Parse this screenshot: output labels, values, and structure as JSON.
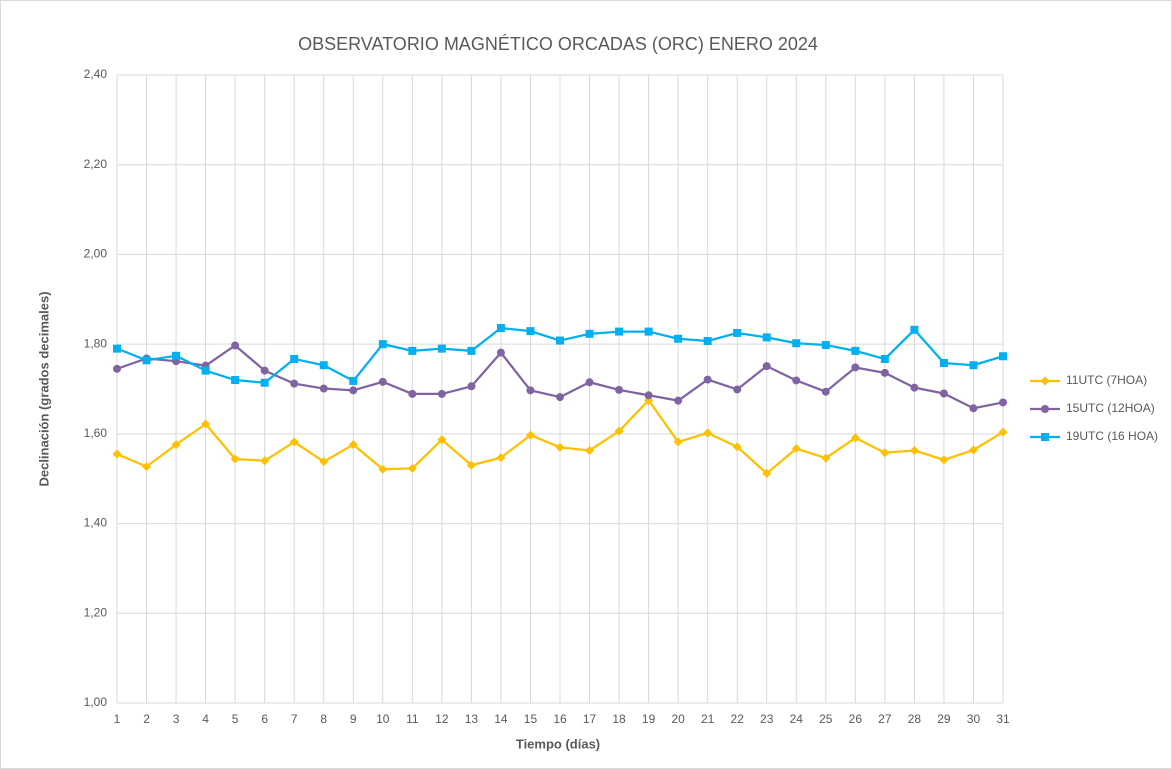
{
  "chart_data": {
    "type": "line",
    "title": "OBSERVATORIO MAGNÉTICO ORCADAS (ORC) ENERO 2024",
    "x_label": "Tiempo (días)",
    "y_label": "Declinación (grados decimales)",
    "categories": [
      1,
      2,
      3,
      4,
      5,
      6,
      7,
      8,
      9,
      10,
      11,
      12,
      13,
      14,
      15,
      16,
      17,
      18,
      19,
      20,
      21,
      22,
      23,
      24,
      25,
      26,
      27,
      28,
      29,
      30,
      31
    ],
    "series": [
      {
        "name": "11UTC (7HOA)",
        "color": "#ffc000",
        "marker": "diamond",
        "values": [
          1.555,
          1.527,
          1.576,
          1.622,
          1.544,
          1.54,
          1.582,
          1.538,
          1.576,
          1.521,
          1.523,
          1.587,
          1.53,
          1.547,
          1.597,
          1.57,
          1.563,
          1.606,
          1.675,
          1.582,
          1.602,
          1.571,
          1.512,
          1.567,
          1.546,
          1.591,
          1.558,
          1.563,
          1.542,
          1.564,
          1.604
        ]
      },
      {
        "name": "15UTC (12HOA)",
        "color": "#8064a2",
        "marker": "circle",
        "values": [
          1.745,
          1.768,
          1.762,
          1.752,
          1.797,
          1.741,
          1.712,
          1.701,
          1.697,
          1.716,
          1.689,
          1.689,
          1.706,
          1.781,
          1.697,
          1.682,
          1.715,
          1.698,
          1.686,
          1.674,
          1.721,
          1.699,
          1.751,
          1.719,
          1.694,
          1.748,
          1.736,
          1.703,
          1.69,
          1.657,
          1.67
        ]
      },
      {
        "name": "19UTC (16 HOA)",
        "color": "#00b0f0",
        "marker": "square",
        "values": [
          1.79,
          1.764,
          1.774,
          1.741,
          1.72,
          1.714,
          1.767,
          1.753,
          1.718,
          1.8,
          1.785,
          1.79,
          1.785,
          1.836,
          1.829,
          1.808,
          1.823,
          1.828,
          1.828,
          1.812,
          1.807,
          1.825,
          1.815,
          1.802,
          1.798,
          1.785,
          1.767,
          1.832,
          1.758,
          1.753,
          1.773
        ]
      }
    ],
    "ylim": [
      1.0,
      2.4
    ],
    "yticks": [
      {
        "value": 1.0,
        "label": "1,00"
      },
      {
        "value": 1.2,
        "label": "1,20"
      },
      {
        "value": 1.4,
        "label": "1,40"
      },
      {
        "value": 1.6,
        "label": "1,60"
      },
      {
        "value": 1.8,
        "label": "1,80"
      },
      {
        "value": 2.0,
        "label": "2,00"
      },
      {
        "value": 2.2,
        "label": "2,20"
      },
      {
        "value": 2.4,
        "label": "2,40"
      }
    ],
    "grid": true,
    "legend": "right"
  }
}
